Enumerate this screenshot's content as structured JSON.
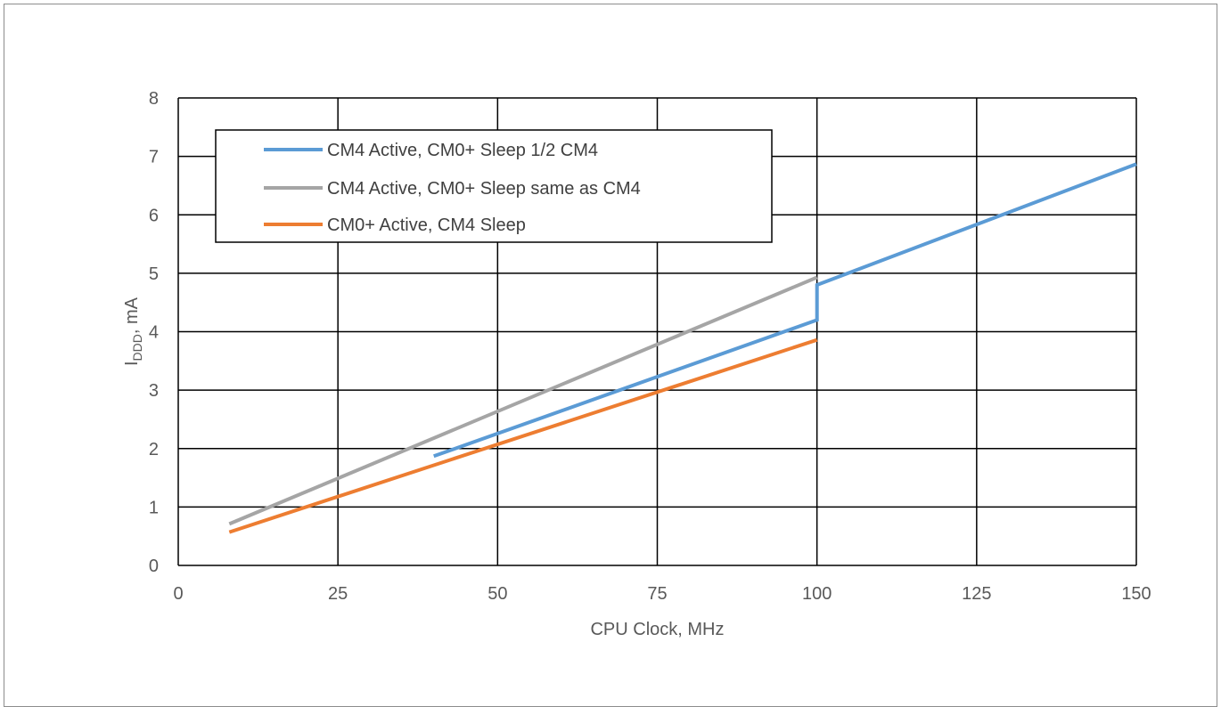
{
  "chart_data": {
    "type": "line",
    "title": "",
    "xlabel": "CPU Clock, MHz",
    "ylabel_main": "I",
    "ylabel_sub": "DDD",
    "ylabel_tail": ", mA",
    "xlim": [
      0,
      150
    ],
    "ylim": [
      0,
      8
    ],
    "xticks": [
      0,
      25,
      50,
      75,
      100,
      125,
      150
    ],
    "yticks": [
      0,
      1,
      2,
      3,
      4,
      5,
      6,
      7,
      8
    ],
    "grid": true,
    "legend_position": "top-left",
    "series": [
      {
        "name": "CM4 Active, CM0+ Sleep 1/2 CM4",
        "color": "#5b9bd5",
        "points": [
          [
            40,
            1.87
          ],
          [
            100,
            4.2
          ],
          [
            100,
            4.8
          ],
          [
            150,
            6.87
          ]
        ]
      },
      {
        "name": "CM4 Active, CM0+ Sleep same as CM4",
        "color": "#a5a5a5",
        "points": [
          [
            8,
            0.71
          ],
          [
            100,
            4.93
          ]
        ]
      },
      {
        "name": "CM0+ Active, CM4 Sleep",
        "color": "#ed7d31",
        "points": [
          [
            8,
            0.57
          ],
          [
            100,
            3.86
          ]
        ]
      }
    ]
  }
}
